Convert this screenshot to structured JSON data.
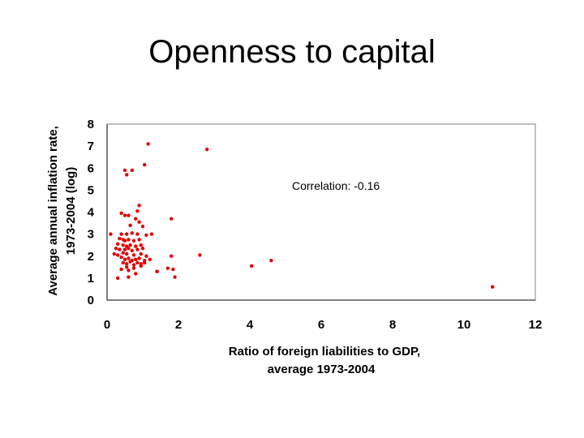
{
  "slide": {
    "title": "Openness to capital"
  },
  "colors": {
    "points": "#e00000",
    "axis": "#000000",
    "frame": "#808080"
  },
  "chart_data": {
    "type": "scatter",
    "title": "Openness to capital",
    "xlabel": [
      "Ratio of foreign liabilities to GDP,",
      "average 1973-2004"
    ],
    "ylabel": [
      "Average annual inflation rate,",
      "1973-2004 (log)"
    ],
    "xlim": [
      0,
      12
    ],
    "ylim": [
      0,
      8
    ],
    "xticks": [
      0,
      2,
      4,
      6,
      8,
      10,
      12
    ],
    "yticks": [
      0,
      1,
      2,
      3,
      4,
      5,
      6,
      7,
      8
    ],
    "annotation": "Correlation: -0.16",
    "grid": false,
    "legend": "none",
    "series": [
      {
        "points": [
          [
            1.15,
            7.1
          ],
          [
            2.8,
            6.85
          ],
          [
            1.05,
            6.15
          ],
          [
            0.5,
            5.9
          ],
          [
            0.55,
            5.7
          ],
          [
            0.7,
            5.9
          ],
          [
            0.9,
            4.3
          ],
          [
            0.85,
            4.05
          ],
          [
            0.4,
            3.95
          ],
          [
            0.5,
            3.85
          ],
          [
            0.6,
            3.85
          ],
          [
            0.8,
            3.7
          ],
          [
            0.9,
            3.55
          ],
          [
            1.8,
            3.7
          ],
          [
            0.65,
            3.4
          ],
          [
            1.0,
            3.35
          ],
          [
            0.1,
            3.0
          ],
          [
            0.4,
            3.0
          ],
          [
            0.55,
            3.0
          ],
          [
            0.7,
            3.05
          ],
          [
            0.85,
            3.0
          ],
          [
            1.1,
            2.95
          ],
          [
            1.25,
            3.0
          ],
          [
            0.35,
            2.8
          ],
          [
            0.45,
            2.75
          ],
          [
            0.5,
            2.7
          ],
          [
            0.6,
            2.75
          ],
          [
            0.75,
            2.7
          ],
          [
            0.9,
            2.75
          ],
          [
            0.3,
            2.55
          ],
          [
            0.45,
            2.5
          ],
          [
            0.55,
            2.45
          ],
          [
            0.65,
            2.5
          ],
          [
            0.8,
            2.45
          ],
          [
            0.95,
            2.5
          ],
          [
            0.25,
            2.35
          ],
          [
            0.35,
            2.3
          ],
          [
            0.5,
            2.3
          ],
          [
            0.6,
            2.35
          ],
          [
            0.7,
            2.25
          ],
          [
            0.85,
            2.3
          ],
          [
            1.0,
            2.35
          ],
          [
            0.2,
            2.1
          ],
          [
            0.3,
            2.05
          ],
          [
            0.45,
            2.15
          ],
          [
            0.55,
            2.1
          ],
          [
            0.75,
            2.05
          ],
          [
            0.95,
            2.1
          ],
          [
            1.1,
            2.0
          ],
          [
            1.8,
            2.0
          ],
          [
            2.6,
            2.05
          ],
          [
            0.4,
            1.95
          ],
          [
            0.5,
            1.85
          ],
          [
            0.6,
            1.9
          ],
          [
            0.7,
            1.8
          ],
          [
            0.8,
            1.85
          ],
          [
            0.9,
            1.9
          ],
          [
            1.05,
            1.8
          ],
          [
            1.2,
            1.85
          ],
          [
            0.45,
            1.7
          ],
          [
            0.55,
            1.65
          ],
          [
            0.65,
            1.75
          ],
          [
            0.75,
            1.6
          ],
          [
            0.85,
            1.7
          ],
          [
            0.95,
            1.65
          ],
          [
            1.05,
            1.7
          ],
          [
            0.55,
            1.5
          ],
          [
            0.75,
            1.45
          ],
          [
            0.95,
            1.55
          ],
          [
            1.7,
            1.45
          ],
          [
            4.05,
            1.55
          ],
          [
            4.6,
            1.8
          ],
          [
            0.4,
            1.4
          ],
          [
            0.6,
            1.35
          ],
          [
            1.4,
            1.3
          ],
          [
            0.8,
            1.2
          ],
          [
            1.4,
            1.3
          ],
          [
            1.85,
            1.4
          ],
          [
            0.3,
            1.0
          ],
          [
            0.6,
            1.05
          ],
          [
            1.9,
            1.05
          ],
          [
            10.8,
            0.6
          ]
        ]
      }
    ]
  }
}
